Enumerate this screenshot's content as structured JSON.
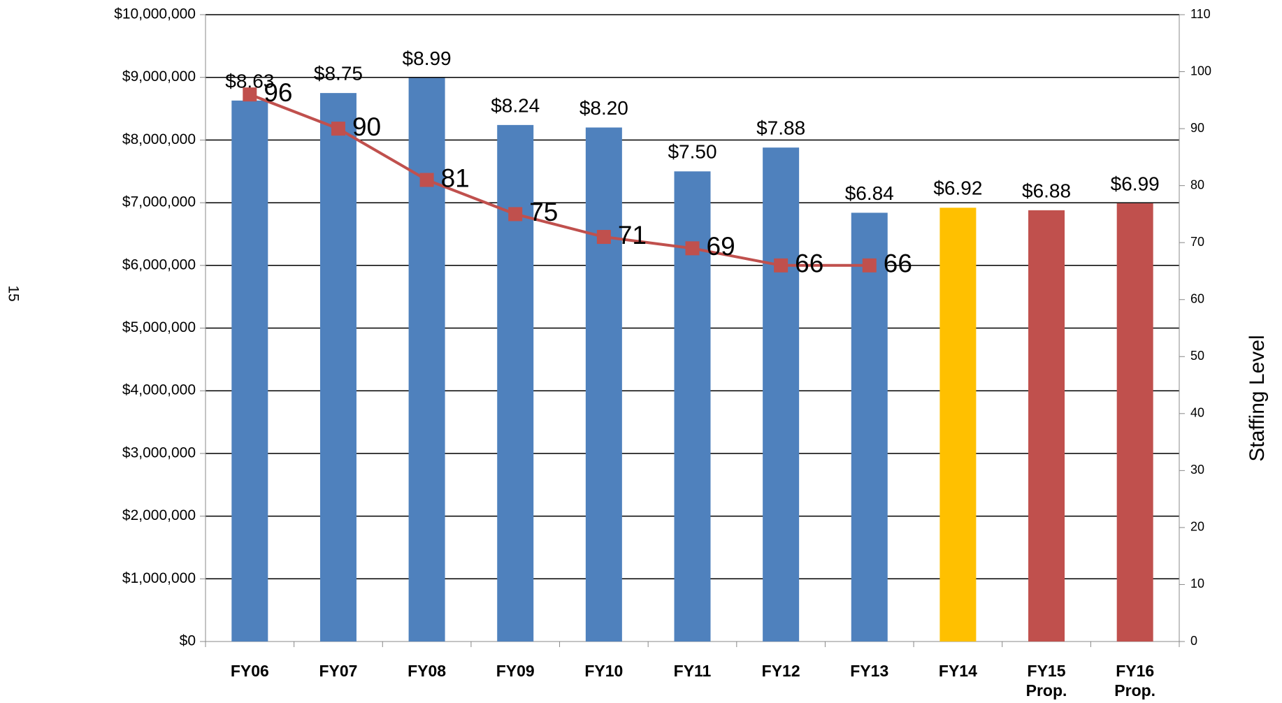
{
  "page_number": "15",
  "chart_data": {
    "type": "bar",
    "categories": [
      "FY06",
      "FY07",
      "FY08",
      "FY09",
      "FY10",
      "FY11",
      "FY12",
      "FY13",
      "FY14",
      "FY15 Prop.",
      "FY16 Prop."
    ],
    "series": [
      {
        "type": "bar",
        "values": [
          8630000,
          8750000,
          8990000,
          8240000,
          8200000,
          7500000,
          7880000,
          6840000,
          6920000,
          6880000,
          6990000
        ],
        "value_labels": [
          "$8.63",
          "$8.75",
          "$8.99",
          "$8.24",
          "$8.20",
          "$7.50",
          "$7.88",
          "$6.84",
          "$6.92",
          "$6.88",
          "$6.99"
        ],
        "colors": [
          "#4f81bd",
          "#4f81bd",
          "#4f81bd",
          "#4f81bd",
          "#4f81bd",
          "#4f81bd",
          "#4f81bd",
          "#4f81bd",
          "#ffc000",
          "#c0504d",
          "#c0504d"
        ]
      },
      {
        "type": "line",
        "axis": "y2",
        "color": "#c0504d",
        "values": [
          96,
          90,
          81,
          75,
          71,
          69,
          66,
          66,
          null,
          null,
          null
        ]
      }
    ],
    "ylim": [
      0,
      10000000
    ],
    "yticks": [
      {
        "value": 0,
        "label": "$0"
      },
      {
        "value": 1000000,
        "label": "$1,000,000"
      },
      {
        "value": 2000000,
        "label": "$2,000,000"
      },
      {
        "value": 3000000,
        "label": "$3,000,000"
      },
      {
        "value": 4000000,
        "label": "$4,000,000"
      },
      {
        "value": 5000000,
        "label": "$5,000,000"
      },
      {
        "value": 6000000,
        "label": "$6,000,000"
      },
      {
        "value": 7000000,
        "label": "$7,000,000"
      },
      {
        "value": 8000000,
        "label": "$8,000,000"
      },
      {
        "value": 9000000,
        "label": "$9,000,000"
      },
      {
        "value": 10000000,
        "label": "$10,000,000"
      }
    ],
    "y2lim": [
      0,
      110
    ],
    "y2ticks": [
      0,
      10,
      20,
      30,
      40,
      50,
      60,
      70,
      80,
      90,
      100,
      110
    ],
    "y2label": "Staffing  Level",
    "grid": true
  }
}
